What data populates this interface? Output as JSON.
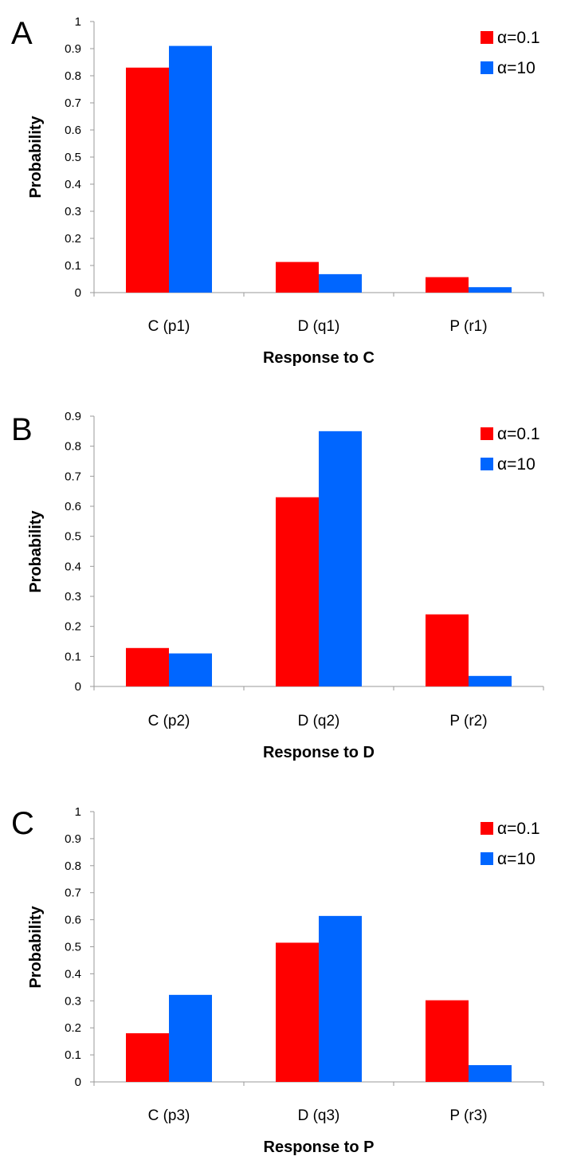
{
  "colors": {
    "series_red": "#ff0000",
    "series_blue": "#0066ff"
  },
  "chart_data": [
    {
      "type": "bar",
      "panel": "A",
      "title": "",
      "xlabel": "Response to C",
      "ylabel": "Probability",
      "ylim": [
        0,
        1
      ],
      "yticks": [
        "0",
        "0.1",
        "0.2",
        "0.3",
        "0.4",
        "0.5",
        "0.6",
        "0.7",
        "0.8",
        "0.9",
        "1"
      ],
      "legend_position": "top-right",
      "categories": [
        "C (p1)",
        "D (q1)",
        "P (r1)"
      ],
      "series": [
        {
          "name": "α=0.1",
          "color": "#ff0000",
          "values": [
            0.83,
            0.113,
            0.057
          ]
        },
        {
          "name": "α=10",
          "color": "#0066ff",
          "values": [
            0.91,
            0.068,
            0.02
          ]
        }
      ]
    },
    {
      "type": "bar",
      "panel": "B",
      "title": "",
      "xlabel": "Response to D",
      "ylabel": "Probability",
      "ylim": [
        0,
        0.9
      ],
      "yticks": [
        "0",
        "0.1",
        "0.2",
        "0.3",
        "0.4",
        "0.5",
        "0.6",
        "0.7",
        "0.8",
        "0.9"
      ],
      "legend_position": "top-right",
      "categories": [
        "C (p2)",
        "D (q2)",
        "P (r2)"
      ],
      "series": [
        {
          "name": "α=0.1",
          "color": "#ff0000",
          "values": [
            0.128,
            0.63,
            0.24
          ]
        },
        {
          "name": "α=10",
          "color": "#0066ff",
          "values": [
            0.11,
            0.85,
            0.035
          ]
        }
      ]
    },
    {
      "type": "bar",
      "panel": "C",
      "title": "",
      "xlabel": "Response to P",
      "ylabel": "Probability",
      "ylim": [
        0,
        1
      ],
      "yticks": [
        "0",
        "0.1",
        "0.2",
        "0.3",
        "0.4",
        "0.5",
        "0.6",
        "0.7",
        "0.8",
        "0.9",
        "1"
      ],
      "legend_position": "top-right",
      "categories": [
        "C (p3)",
        "D (q3)",
        "P (r3)"
      ],
      "series": [
        {
          "name": "α=0.1",
          "color": "#ff0000",
          "values": [
            0.18,
            0.515,
            0.302
          ]
        },
        {
          "name": "α=10",
          "color": "#0066ff",
          "values": [
            0.322,
            0.614,
            0.062
          ]
        }
      ]
    }
  ]
}
